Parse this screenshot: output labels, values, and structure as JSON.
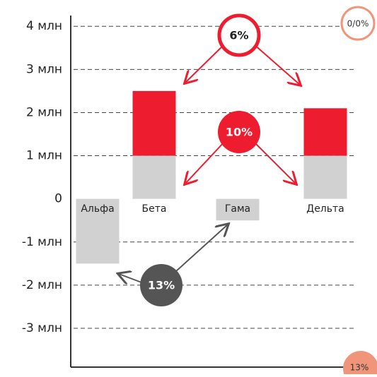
{
  "chart_data": {
    "type": "bar",
    "categories": [
      "Альфа",
      "Бета",
      "Гама",
      "Дельта"
    ],
    "series": [
      {
        "color": "#d1d1d1",
        "values": [
          -1.5,
          1,
          -0.5,
          1
        ]
      },
      {
        "color": "#ed1c2e",
        "values": [
          null,
          1.5,
          null,
          1.1
        ]
      }
    ],
    "ylim": [
      -3.9,
      4.2
    ],
    "yticks": [
      {
        "value": 4,
        "label": "4 млн"
      },
      {
        "value": 3,
        "label": "3 млн"
      },
      {
        "value": 2,
        "label": "2 млн"
      },
      {
        "value": 1,
        "label": "1 млн"
      },
      0,
      {
        "value": -1,
        "label": "-1 млн"
      },
      {
        "value": -2,
        "label": "-2 млн"
      },
      {
        "value": -3,
        "label": "-3 млн"
      }
    ],
    "grid": true,
    "annotations": [
      "6%",
      "10%",
      "13%",
      "0/0%",
      "13%"
    ]
  }
}
